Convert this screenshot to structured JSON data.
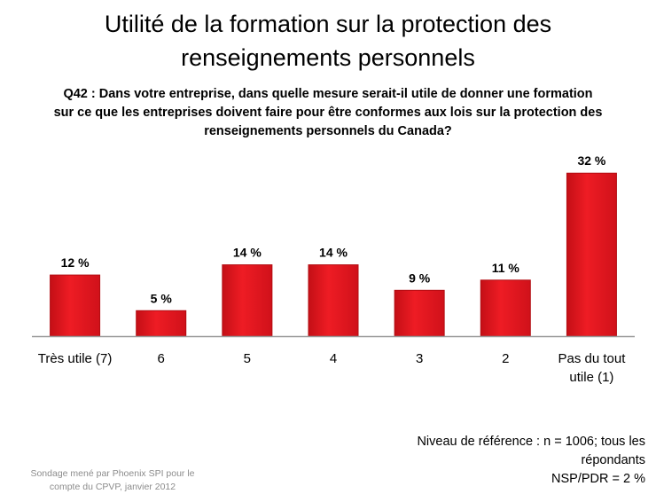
{
  "title_line1": "Utilité de la formation sur la protection des",
  "title_line2": "renseignements personnels",
  "question_line1": "Q42 : Dans votre entreprise, dans quelle mesure serait-il utile de donner une formation",
  "question_line2": "sur ce que les entreprises doivent faire pour être conformes aux lois sur la protection des",
  "question_line3": "renseignements personnels du Canada?",
  "footnote_left_line1": "Sondage mené par Phoenix SPI pour le",
  "footnote_left_line2": "compte du CPVP, janvier 2012",
  "footnote_right_line1": "Niveau de référence : n = 1006; tous les",
  "footnote_right_line2": "répondants",
  "footnote_right_line3": "NSP/PDR = 2 %",
  "colors": {
    "bar": "#e8131b",
    "bar_dark": "#b30c12",
    "axis": "#999999"
  },
  "chart_data": {
    "type": "bar",
    "categories": [
      [
        "Très utile (7)"
      ],
      [
        "6"
      ],
      [
        "5"
      ],
      [
        "4"
      ],
      [
        "3"
      ],
      [
        "2"
      ],
      [
        "Pas du tout",
        "utile (1)"
      ]
    ],
    "values": [
      12,
      5,
      14,
      14,
      9,
      11,
      32
    ],
    "data_labels": [
      "12 %",
      "5 %",
      "14 %",
      "14 %",
      "9 %",
      "11 %",
      "32 %"
    ],
    "ylim": [
      0,
      35
    ],
    "unit": "%"
  }
}
